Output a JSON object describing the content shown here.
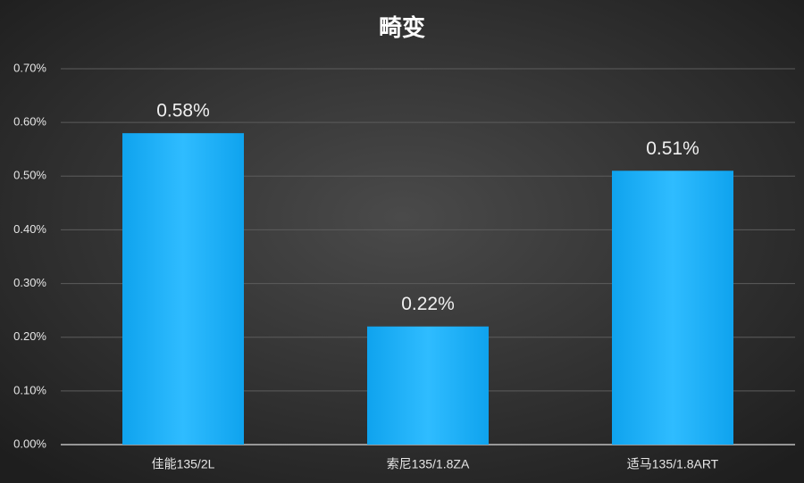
{
  "chart_data": {
    "type": "bar",
    "title": "畸变",
    "categories": [
      "佳能135/2L",
      "索尼135/1.8ZA",
      "适马135/1.8ART"
    ],
    "values": [
      0.58,
      0.22,
      0.51
    ],
    "value_labels": [
      "0.58%",
      "0.22%",
      "0.51%"
    ],
    "color": "#1aaef5",
    "ylim": [
      0,
      0.7
    ],
    "yticks": [
      {
        "value": 0,
        "label": "0.00%"
      },
      {
        "value": 0.1,
        "label": "0.10%"
      },
      {
        "value": 0.2,
        "label": "0.20%"
      },
      {
        "value": 0.3,
        "label": "0.30%"
      },
      {
        "value": 0.4,
        "label": "0.40%"
      },
      {
        "value": 0.5,
        "label": "0.50%"
      },
      {
        "value": 0.6,
        "label": "0.60%"
      },
      {
        "value": 0.7,
        "label": "0.70%"
      }
    ],
    "grid": true
  }
}
